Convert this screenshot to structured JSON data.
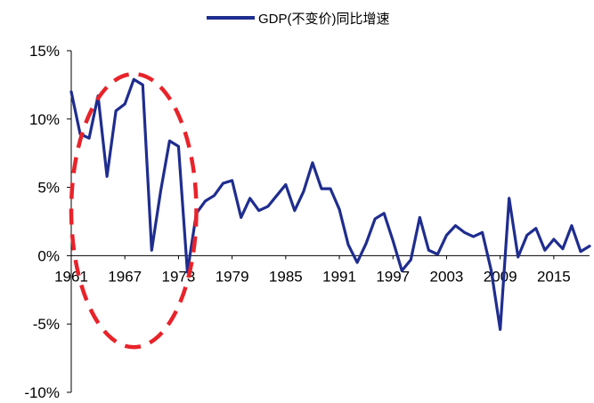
{
  "chart_data": {
    "type": "line",
    "title": "",
    "xlabel": "",
    "ylabel": "",
    "legend": {
      "placement": "top-center",
      "label": "GDP(不变价)同比增速"
    },
    "ylim": [
      -10,
      15
    ],
    "y_ticks": [
      {
        "value": 15,
        "label": "15%"
      },
      {
        "value": 10,
        "label": "10%"
      },
      {
        "value": 5,
        "label": "5%"
      },
      {
        "value": 0,
        "label": "0%"
      },
      {
        "value": -5,
        "label": "-5%"
      },
      {
        "value": -10,
        "label": "-10%"
      }
    ],
    "xlim": [
      1961,
      2019
    ],
    "x_ticks": [
      {
        "value": 1961,
        "label": "1961"
      },
      {
        "value": 1967,
        "label": "1967"
      },
      {
        "value": 1973,
        "label": "1973"
      },
      {
        "value": 1979,
        "label": "1979"
      },
      {
        "value": 1985,
        "label": "1985"
      },
      {
        "value": 1991,
        "label": "1991"
      },
      {
        "value": 1997,
        "label": "1997"
      },
      {
        "value": 2003,
        "label": "2003"
      },
      {
        "value": 2009,
        "label": "2009"
      },
      {
        "value": 2015,
        "label": "2015"
      }
    ],
    "grid": false,
    "series": [
      {
        "name": "GDP(不变价)同比增速",
        "color": "#1f2d8f",
        "x": [
          1961,
          1962,
          1963,
          1964,
          1965,
          1966,
          1967,
          1968,
          1969,
          1970,
          1971,
          1972,
          1973,
          1974,
          1975,
          1976,
          1977,
          1978,
          1979,
          1980,
          1981,
          1982,
          1983,
          1984,
          1985,
          1986,
          1987,
          1988,
          1989,
          1990,
          1991,
          1992,
          1993,
          1994,
          1995,
          1996,
          1997,
          1998,
          1999,
          2000,
          2001,
          2002,
          2003,
          2004,
          2005,
          2006,
          2007,
          2008,
          2009,
          2010,
          2011,
          2012,
          2013,
          2014,
          2015,
          2016,
          2017,
          2018,
          2019
        ],
        "y": [
          12.0,
          8.9,
          8.6,
          11.7,
          5.8,
          10.6,
          11.1,
          12.9,
          12.5,
          0.4,
          4.7,
          8.4,
          8.0,
          -1.2,
          3.1,
          4.0,
          4.4,
          5.3,
          5.5,
          2.8,
          4.2,
          3.3,
          3.6,
          4.4,
          5.2,
          3.3,
          4.7,
          6.8,
          4.9,
          4.9,
          3.4,
          0.8,
          -0.5,
          0.9,
          2.7,
          3.1,
          1.1,
          -1.1,
          -0.3,
          2.8,
          0.4,
          0.1,
          1.5,
          2.2,
          1.7,
          1.4,
          1.7,
          -1.1,
          -5.4,
          4.2,
          -0.1,
          1.5,
          2.0,
          0.4,
          1.2,
          0.5,
          2.2,
          0.3,
          0.7
        ]
      }
    ],
    "annotations": [
      {
        "type": "dashed-ellipse",
        "color": "#e8232a",
        "x_range": [
          1961,
          1975
        ],
        "y_range": [
          -6.7,
          13.3
        ]
      }
    ]
  }
}
